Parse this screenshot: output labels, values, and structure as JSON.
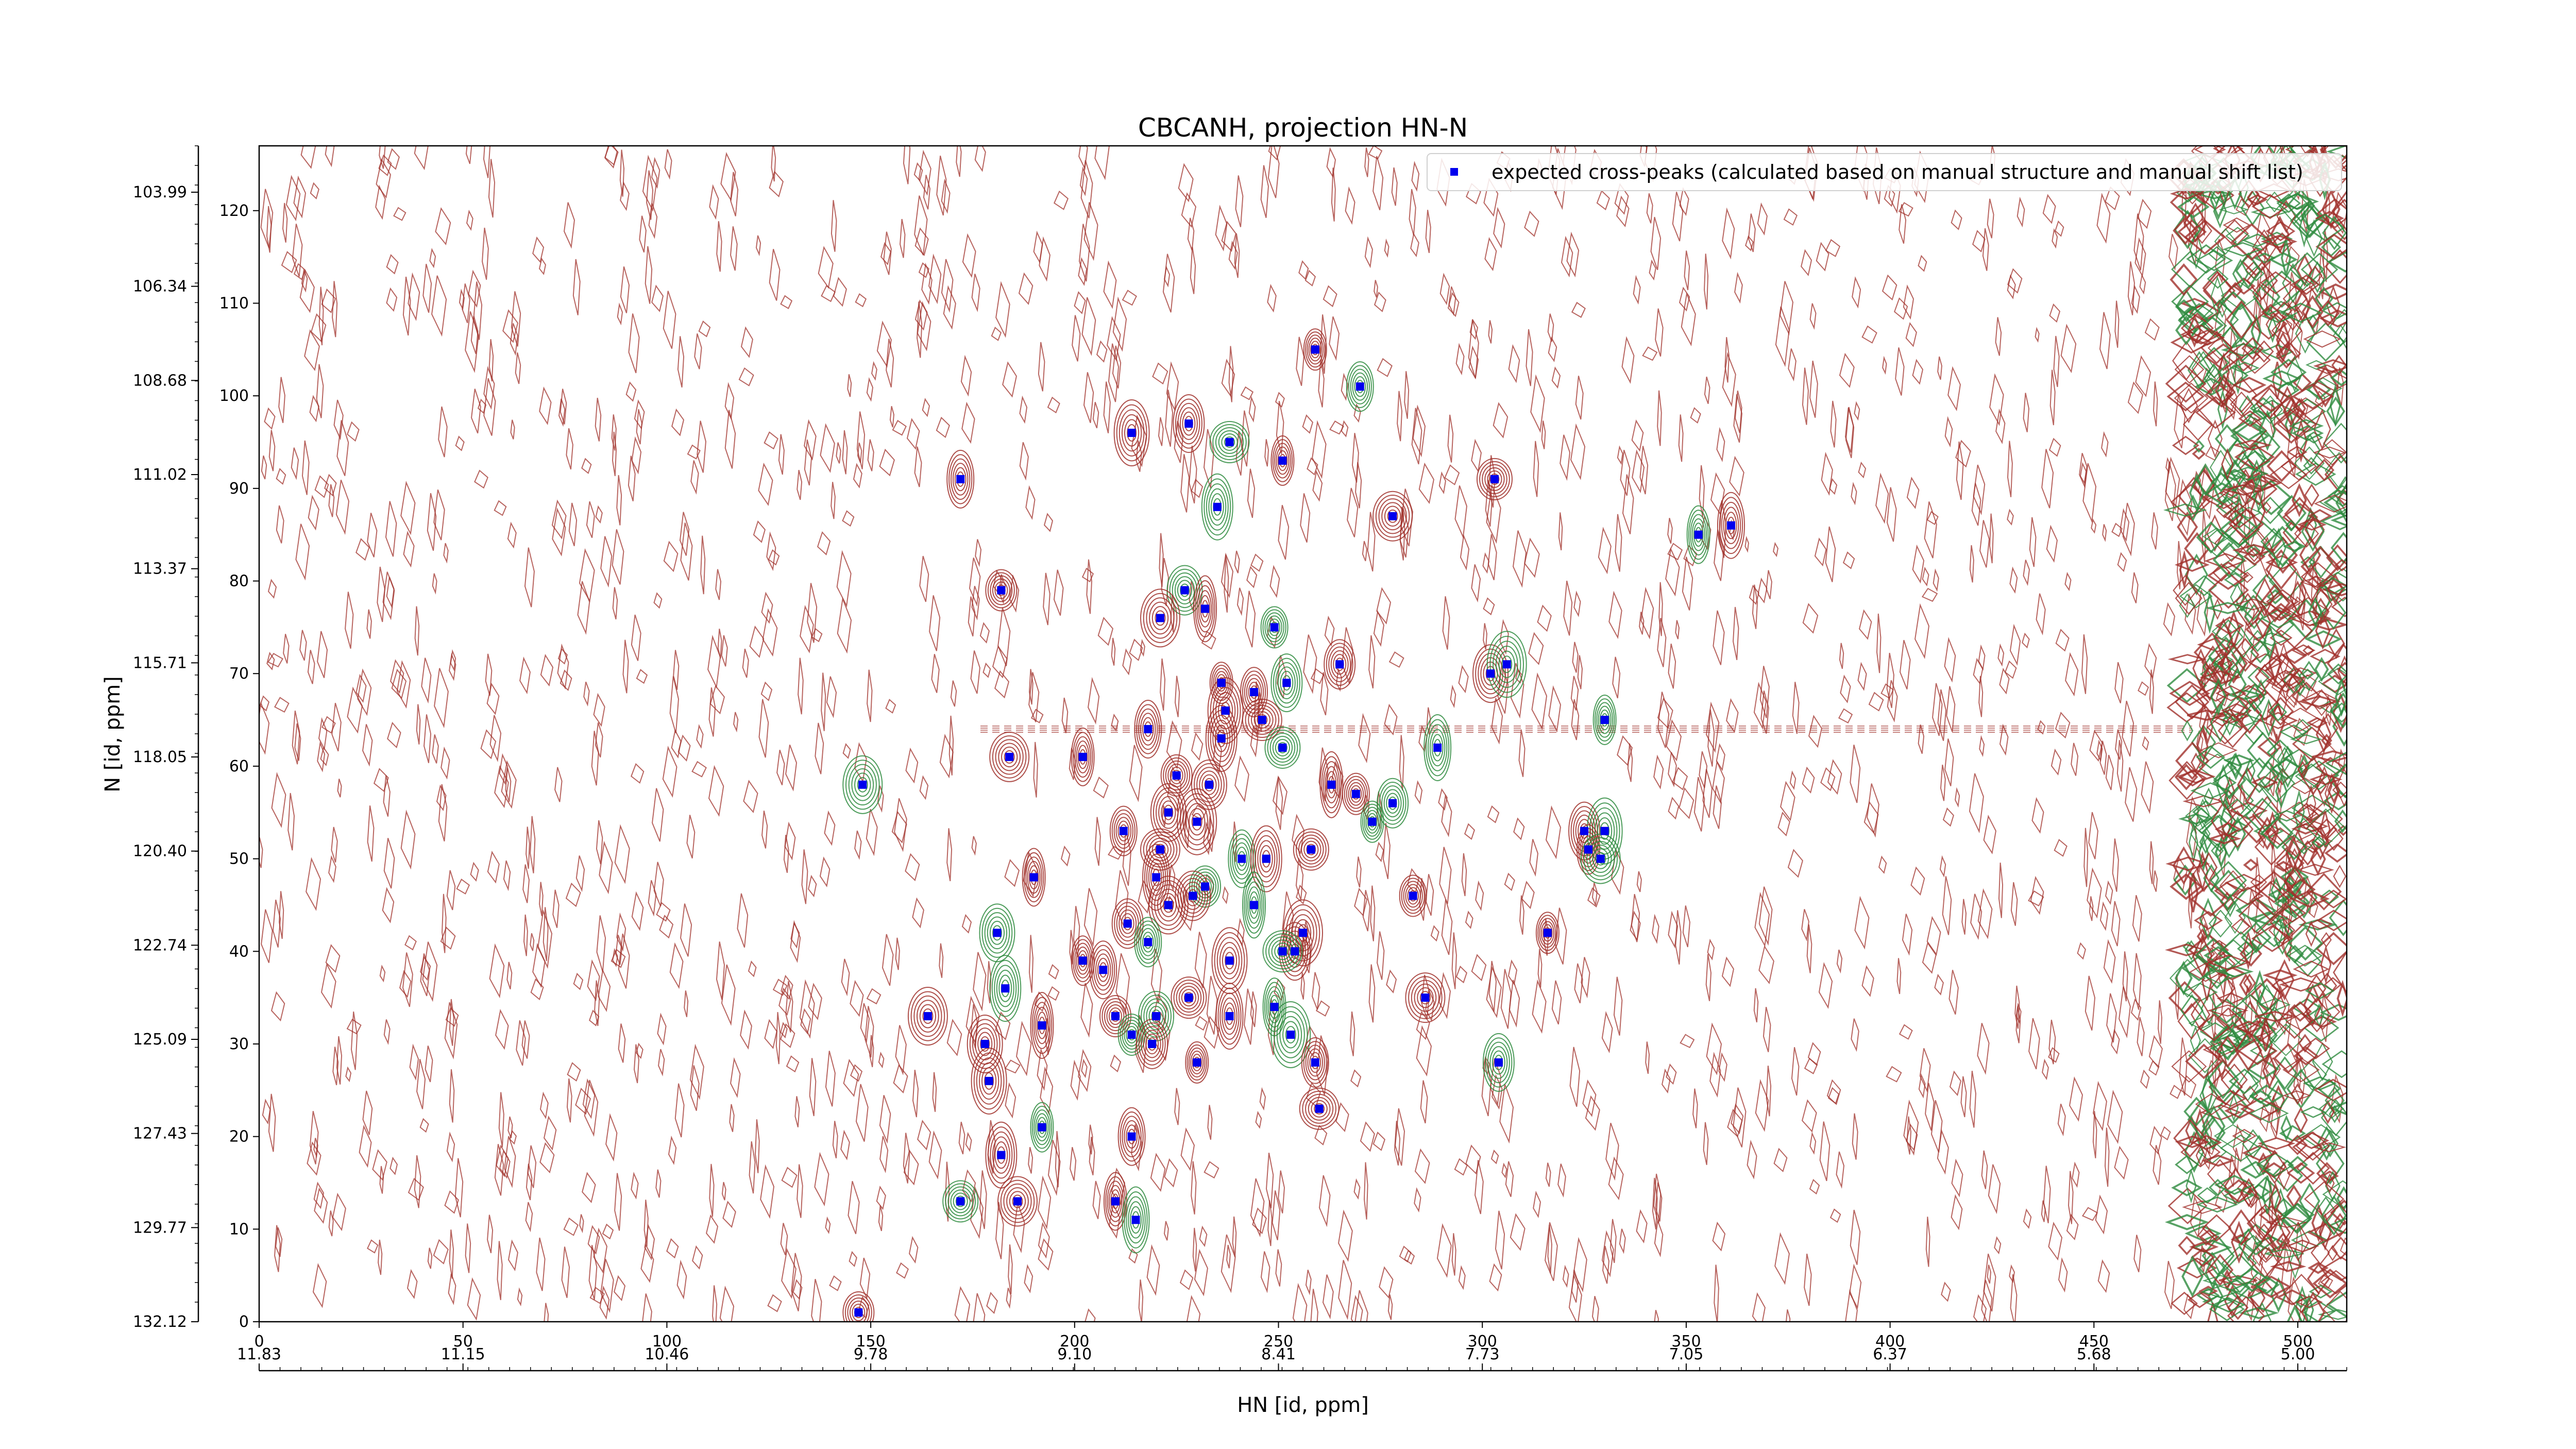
{
  "chart_data": {
    "type": "scatter",
    "title": "CBCANH, projection HN-N",
    "xlabel": "HN [id, ppm]",
    "ylabel": "N [id, ppm]",
    "xlim": [
      0,
      512
    ],
    "ylim": [
      0,
      127
    ],
    "x_ticks": [
      0,
      50,
      100,
      150,
      200,
      250,
      300,
      350,
      400,
      450,
      500
    ],
    "y_ticks": [
      0,
      10,
      20,
      30,
      40,
      50,
      60,
      70,
      80,
      90,
      100,
      110,
      120
    ],
    "ppm_x_tick_labels": [
      "11.83",
      "11.15",
      "10.46",
      "9.78",
      "9.10",
      "8.41",
      "7.73",
      "7.05",
      "6.37",
      "5.68",
      "5.00"
    ],
    "ppm_y_tick_labels": [
      "132.12",
      "129.77",
      "127.43",
      "125.09",
      "122.74",
      "120.40",
      "118.05",
      "115.71",
      "113.37",
      "111.02",
      "108.68",
      "106.34",
      "103.99"
    ],
    "legend": {
      "label": "expected cross-peaks (calculated based on manual structure and manual shift list)",
      "placement": "top-right"
    },
    "colors": {
      "peak": "#0000ee",
      "contour_positive": "#a0302a",
      "contour_negative": "#2e8b3e"
    },
    "series": [
      {
        "name": "expected cross-peaks (calculated based on manual structure and manual shift list)",
        "points": [
          [
            259,
            105
          ],
          [
            270,
            101
          ],
          [
            228,
            97
          ],
          [
            214,
            96
          ],
          [
            238,
            95
          ],
          [
            251,
            93
          ],
          [
            172,
            91
          ],
          [
            235,
            88
          ],
          [
            303,
            91
          ],
          [
            278,
            87
          ],
          [
            353,
            85
          ],
          [
            361,
            86
          ],
          [
            182,
            79
          ],
          [
            227,
            79
          ],
          [
            221,
            76
          ],
          [
            232,
            77
          ],
          [
            249,
            75
          ],
          [
            265,
            71
          ],
          [
            302,
            70
          ],
          [
            306,
            71
          ],
          [
            236,
            69
          ],
          [
            244,
            68
          ],
          [
            252,
            69
          ],
          [
            237,
            66
          ],
          [
            246,
            65
          ],
          [
            330,
            65
          ],
          [
            218,
            64
          ],
          [
            236,
            63
          ],
          [
            251,
            62
          ],
          [
            184,
            61
          ],
          [
            202,
            61
          ],
          [
            289,
            62
          ],
          [
            225,
            59
          ],
          [
            233,
            58
          ],
          [
            148,
            58
          ],
          [
            263,
            58
          ],
          [
            269,
            57
          ],
          [
            278,
            56
          ],
          [
            223,
            55
          ],
          [
            230,
            54
          ],
          [
            273,
            54
          ],
          [
            212,
            53
          ],
          [
            325,
            53
          ],
          [
            330,
            53
          ],
          [
            221,
            51
          ],
          [
            326,
            51
          ],
          [
            241,
            50
          ],
          [
            247,
            50
          ],
          [
            258,
            51
          ],
          [
            329,
            50
          ],
          [
            190,
            48
          ],
          [
            220,
            48
          ],
          [
            232,
            47
          ],
          [
            229,
            46
          ],
          [
            223,
            45
          ],
          [
            244,
            45
          ],
          [
            283,
            46
          ],
          [
            213,
            43
          ],
          [
            181,
            42
          ],
          [
            256,
            42
          ],
          [
            316,
            42
          ],
          [
            218,
            41
          ],
          [
            254,
            40
          ],
          [
            238,
            39
          ],
          [
            251,
            40
          ],
          [
            202,
            39
          ],
          [
            207,
            38
          ],
          [
            183,
            36
          ],
          [
            228,
            35
          ],
          [
            286,
            35
          ],
          [
            249,
            34
          ],
          [
            238,
            33
          ],
          [
            210,
            33
          ],
          [
            220,
            33
          ],
          [
            164,
            33
          ],
          [
            192,
            32
          ],
          [
            214,
            31
          ],
          [
            219,
            30
          ],
          [
            178,
            30
          ],
          [
            253,
            31
          ],
          [
            230,
            28
          ],
          [
            259,
            28
          ],
          [
            304,
            28
          ],
          [
            179,
            26
          ],
          [
            260,
            23
          ],
          [
            192,
            21
          ],
          [
            214,
            20
          ],
          [
            182,
            18
          ],
          [
            172,
            13
          ],
          [
            186,
            13
          ],
          [
            210,
            13
          ],
          [
            215,
            11
          ],
          [
            147,
            1
          ]
        ]
      }
    ]
  }
}
